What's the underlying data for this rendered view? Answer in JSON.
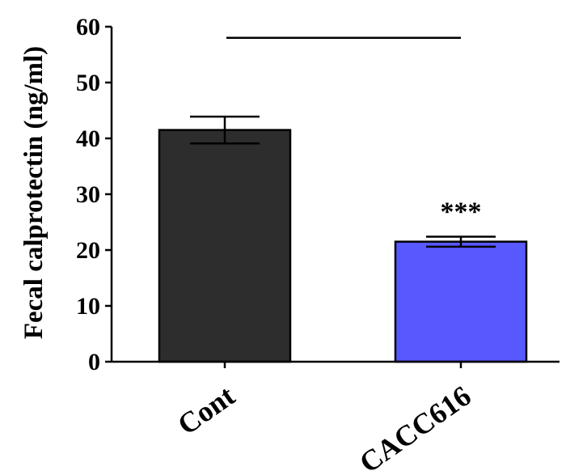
{
  "chart_data": {
    "type": "bar",
    "title": "",
    "xlabel": "",
    "ylabel": "Fecal calprotectin (ng/ml)",
    "ylim": [
      0,
      60
    ],
    "yticks": [
      0,
      10,
      20,
      30,
      40,
      50,
      60
    ],
    "categories": [
      "Cont",
      "CACC616"
    ],
    "values": [
      41.5,
      21.5
    ],
    "errors": [
      2.4,
      0.9
    ],
    "colors": [
      "#2d2d2d",
      "#5858ff"
    ],
    "annotations": [
      {
        "text": "***",
        "category": "CACC616"
      },
      {
        "type": "significance-bracket",
        "from": "Cont",
        "to": "CACC616",
        "y": 58
      }
    ],
    "grid": false,
    "legend": null
  }
}
